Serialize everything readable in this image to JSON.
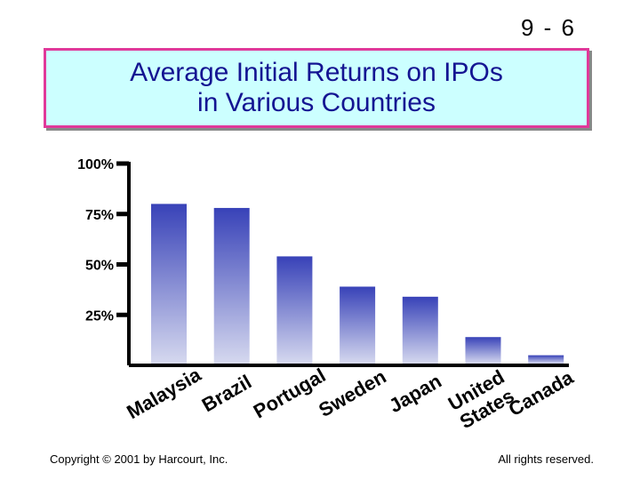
{
  "slide": {
    "number": "9 - 6"
  },
  "chart_data": {
    "type": "bar",
    "title": "Average Initial Returns on IPOs in Various Countries",
    "categories": [
      "Malaysia",
      "Brazil",
      "Portugal",
      "Sweden",
      "Japan",
      "United States",
      "Canada"
    ],
    "category_labels": [
      [
        "Malaysia"
      ],
      [
        "Brazil"
      ],
      [
        "Portugal"
      ],
      [
        "Sweden"
      ],
      [
        "Japan"
      ],
      [
        "United",
        "States"
      ],
      [
        "Canada"
      ]
    ],
    "values": [
      80,
      78,
      54,
      39,
      34,
      14,
      5
    ],
    "ylim": [
      0,
      100
    ],
    "yticks": [
      25,
      50,
      75,
      100
    ],
    "ytick_labels": [
      "25%",
      "50%",
      "75%",
      "100%"
    ],
    "xlabel": "",
    "ylabel": "",
    "grid": false,
    "colors": {
      "bar_top": "#3842b8",
      "bar_bottom": "#d6d9ef",
      "axis": "#000000"
    }
  },
  "footer": {
    "copyright": "Copyright © 2001 by Harcourt, Inc.",
    "rights": "All rights reserved."
  }
}
